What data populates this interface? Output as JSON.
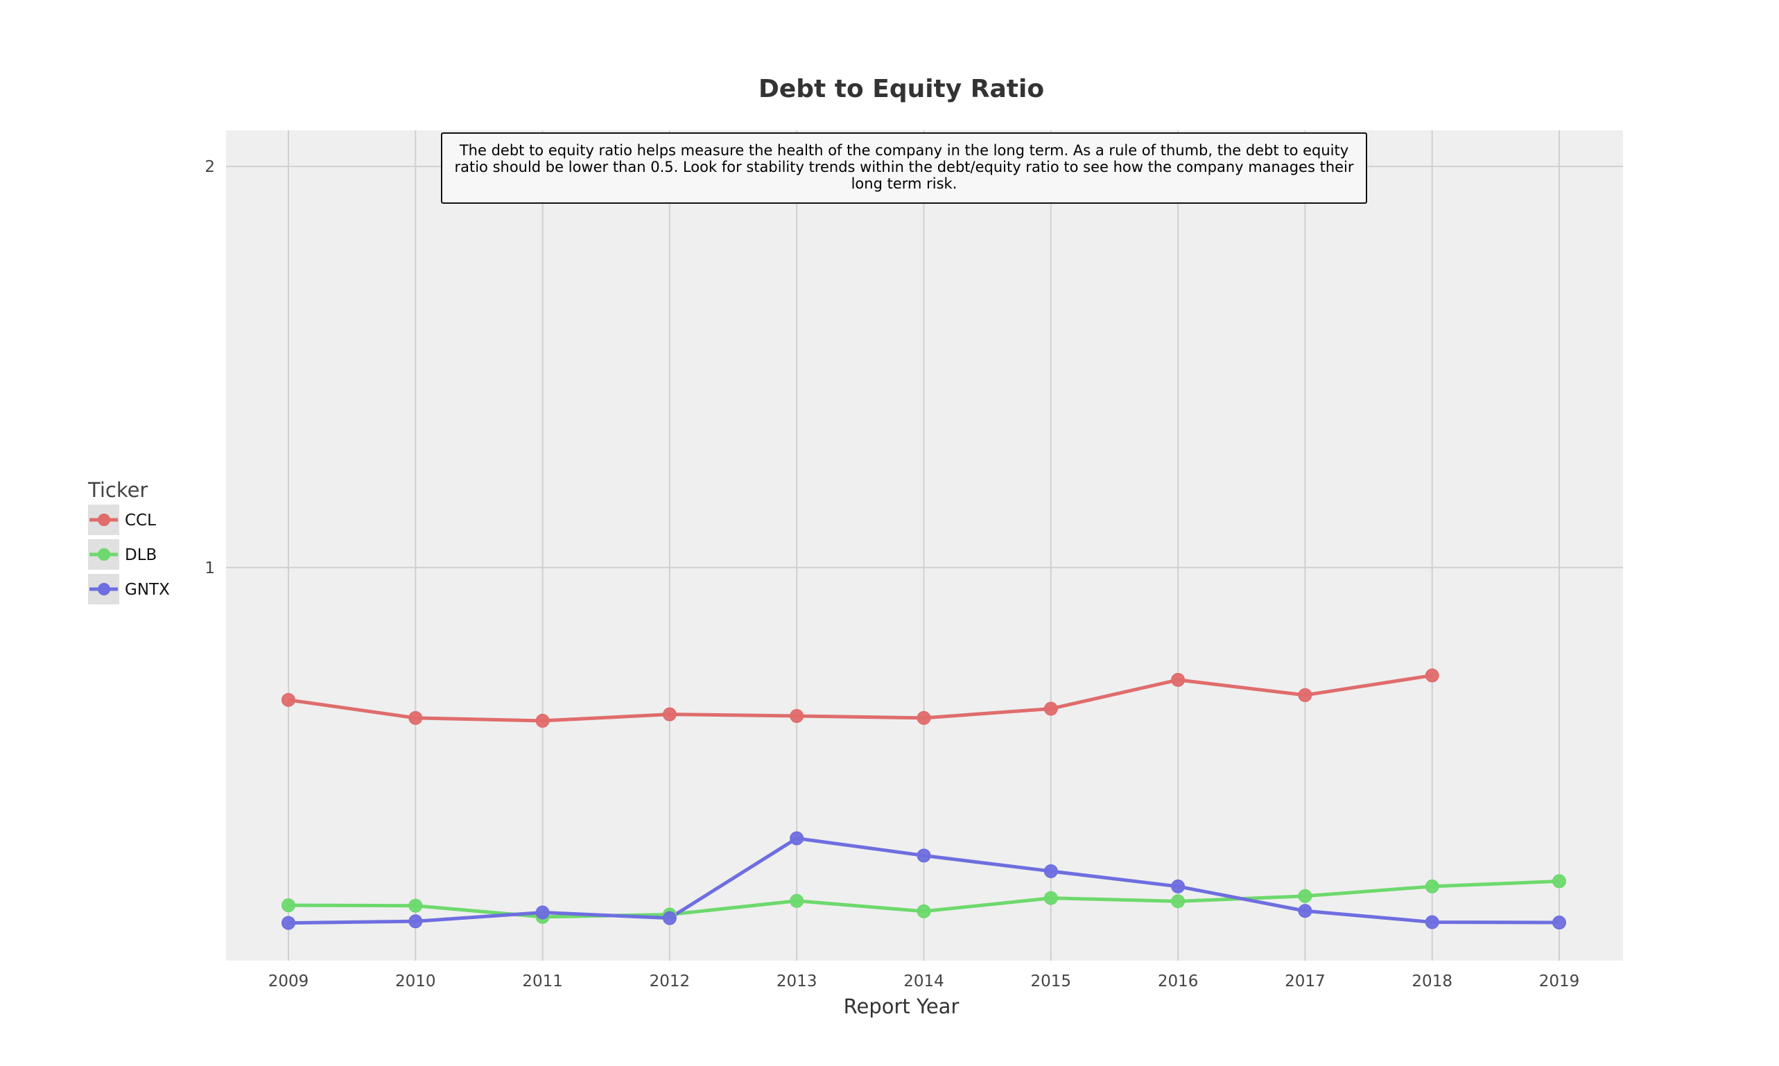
{
  "chart_data": {
    "type": "line",
    "title": "Debt to Equity Ratio",
    "xlabel": "Report Year",
    "ylabel": "",
    "x": [
      2009,
      2010,
      2011,
      2012,
      2013,
      2014,
      2015,
      2016,
      2017,
      2018,
      2019
    ],
    "x_tick_labels": [
      "2009",
      "2010",
      "2011",
      "2012",
      "2013",
      "2014",
      "2015",
      "2016",
      "2017",
      "2018",
      "2019"
    ],
    "y_tick_labels": [
      "1",
      "2"
    ],
    "y_ticks": [
      1,
      2
    ],
    "ylim": [
      0.02,
      2.09
    ],
    "grid": true,
    "legend": {
      "title": "Ticker",
      "position": "left"
    },
    "annotation": "The debt to equity ratio helps measure the health of the company in the long term. As a rule of thumb, the debt to equity ratio should be lower than 0.5. Look for stability trends within the debt/equity ratio to see how the company manages their long term risk.",
    "series": [
      {
        "name": "CCL",
        "color": "#e06c6c",
        "values": [
          0.67,
          0.625,
          0.618,
          0.634,
          0.63,
          0.625,
          0.648,
          0.72,
          0.682,
          0.731,
          null
        ]
      },
      {
        "name": "DLB",
        "color": "#6dd96d",
        "values": [
          0.158,
          0.157,
          0.129,
          0.135,
          0.169,
          0.143,
          0.176,
          0.168,
          0.181,
          0.205,
          0.218
        ]
      },
      {
        "name": "GNTX",
        "color": "#6e6ee0",
        "values": [
          0.114,
          0.118,
          0.14,
          0.126,
          0.325,
          0.282,
          0.243,
          0.205,
          0.144,
          0.116,
          0.115
        ]
      }
    ]
  }
}
